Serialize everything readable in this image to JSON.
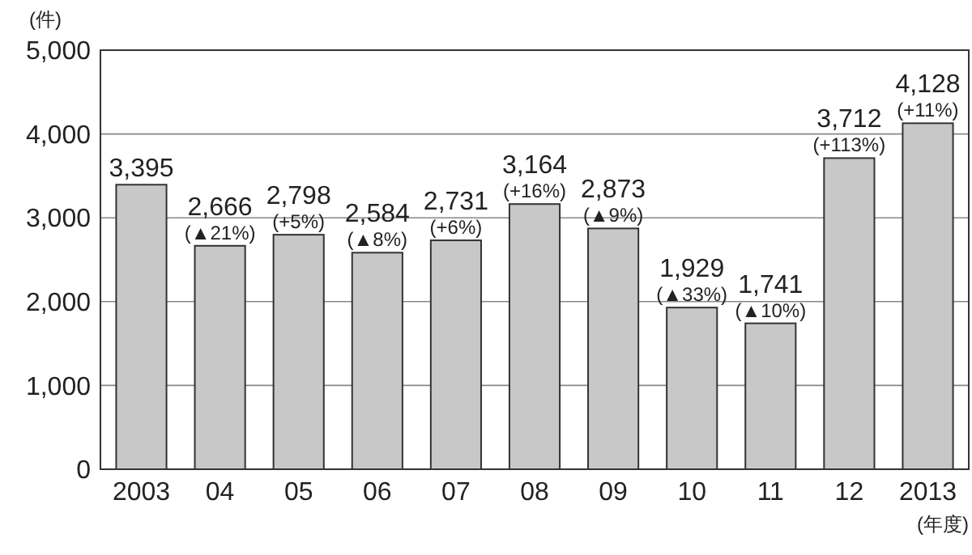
{
  "chart_data": {
    "type": "bar",
    "ylabel": "(件)",
    "xlabel": "(年度)",
    "categories": [
      "2003",
      "04",
      "05",
      "06",
      "07",
      "08",
      "09",
      "10",
      "11",
      "12",
      "2013"
    ],
    "values": [
      3395,
      2666,
      2798,
      2584,
      2731,
      3164,
      2873,
      1929,
      1741,
      3712,
      4128
    ],
    "value_labels": [
      "3,395",
      "2,666",
      "2,798",
      "2,584",
      "2,731",
      "3,164",
      "2,873",
      "1,929",
      "1,741",
      "3,712",
      "4,128"
    ],
    "color": "#c8c8c8",
    "ylim": [
      0,
      5000
    ],
    "yticks": [
      {
        "value": 0,
        "label": "0"
      },
      {
        "value": 1000,
        "label": "1,000"
      },
      {
        "value": 2000,
        "label": "2,000"
      },
      {
        "value": 3000,
        "label": "3,000"
      },
      {
        "value": 4000,
        "label": "4,000"
      },
      {
        "value": 5000,
        "label": "5,000"
      }
    ],
    "grid": "y",
    "annotations": [
      {
        "text": "(▲21%)",
        "x": "04",
        "y": 2666
      },
      {
        "text": "(+5%)",
        "x": "05",
        "y": 2798
      },
      {
        "text": "(▲8%)",
        "x": "06",
        "y": 2584
      },
      {
        "text": "(+6%)",
        "x": "07",
        "y": 2731
      },
      {
        "text": "(+16%)",
        "x": "08",
        "y": 3164
      },
      {
        "text": "(▲9%)",
        "x": "09",
        "y": 2873
      },
      {
        "text": "(▲33%)",
        "x": "10",
        "y": 1929
      },
      {
        "text": "(▲10%)",
        "x": "11",
        "y": 1741
      },
      {
        "text": "(+113%)",
        "x": "12",
        "y": 3712
      },
      {
        "text": "(+11%)",
        "x": "2013",
        "y": 4128
      }
    ]
  }
}
